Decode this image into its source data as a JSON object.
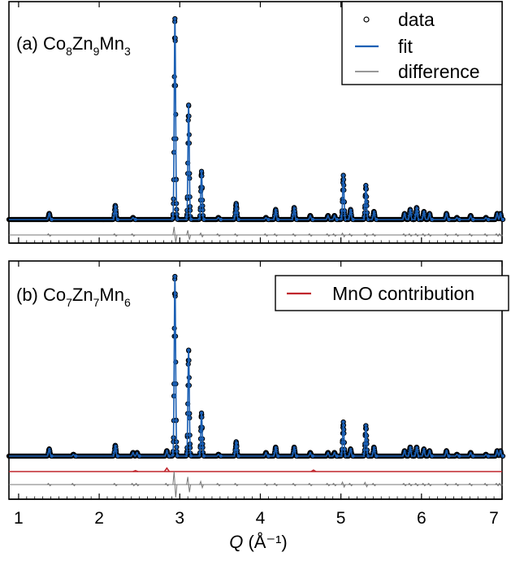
{
  "chart_data": [
    {
      "type": "scatter",
      "panel_label": "(a) Co8Zn9Mn3",
      "panel_label_parts": {
        "prefix": "(a) ",
        "parts": [
          [
            "Co",
            "8"
          ],
          [
            "Zn",
            "9"
          ],
          [
            "Mn",
            "3"
          ]
        ]
      },
      "xlim": [
        0.88,
        7.0
      ],
      "legend": {
        "placement": "top-right",
        "entries": [
          {
            "label": "data",
            "kind": "marker",
            "color": "#000000"
          },
          {
            "label": "fit",
            "kind": "line",
            "color": "#1a5fb4"
          },
          {
            "label": "difference",
            "kind": "line",
            "color": "#777777"
          }
        ]
      },
      "peaks": [
        {
          "q": 1.38,
          "h": 0.03
        },
        {
          "q": 2.2,
          "h": 0.07
        },
        {
          "q": 2.42,
          "h": 0.01
        },
        {
          "q": 2.94,
          "h": 1.0
        },
        {
          "q": 3.11,
          "h": 0.57
        },
        {
          "q": 3.27,
          "h": 0.24
        },
        {
          "q": 3.48,
          "h": 0.01
        },
        {
          "q": 3.7,
          "h": 0.08
        },
        {
          "q": 4.07,
          "h": 0.01
        },
        {
          "q": 4.19,
          "h": 0.05
        },
        {
          "q": 4.42,
          "h": 0.06
        },
        {
          "q": 4.62,
          "h": 0.02
        },
        {
          "q": 4.84,
          "h": 0.02
        },
        {
          "q": 4.92,
          "h": 0.02
        },
        {
          "q": 5.03,
          "h": 0.22
        },
        {
          "q": 5.12,
          "h": 0.05
        },
        {
          "q": 5.31,
          "h": 0.17
        },
        {
          "q": 5.41,
          "h": 0.04
        },
        {
          "q": 5.79,
          "h": 0.03
        },
        {
          "q": 5.86,
          "h": 0.05
        },
        {
          "q": 5.94,
          "h": 0.06
        },
        {
          "q": 6.03,
          "h": 0.04
        },
        {
          "q": 6.1,
          "h": 0.03
        },
        {
          "q": 6.31,
          "h": 0.03
        },
        {
          "q": 6.44,
          "h": 0.01
        },
        {
          "q": 6.61,
          "h": 0.02
        },
        {
          "q": 6.8,
          "h": 0.01
        },
        {
          "q": 6.94,
          "h": 0.03
        },
        {
          "q": 6.98,
          "h": 0.03
        }
      ]
    },
    {
      "type": "scatter",
      "panel_label": "(b) Co7Zn7Mn6",
      "panel_label_parts": {
        "prefix": "(b) ",
        "parts": [
          [
            "Co",
            "7"
          ],
          [
            "Zn",
            "7"
          ],
          [
            "Mn",
            "6"
          ]
        ]
      },
      "xlim": [
        0.88,
        7.0
      ],
      "legend": {
        "placement": "top-right",
        "entries": [
          {
            "label": "MnO contribution",
            "kind": "line",
            "color": "#c0262d"
          }
        ]
      },
      "mno_peaks": [
        {
          "q": 2.45,
          "h": 0.2
        },
        {
          "q": 2.84,
          "h": 0.7
        },
        {
          "q": 4.66,
          "h": 0.3
        }
      ],
      "peaks": [
        {
          "q": 1.38,
          "h": 0.04
        },
        {
          "q": 1.68,
          "h": 0.01
        },
        {
          "q": 2.2,
          "h": 0.06
        },
        {
          "q": 2.42,
          "h": 0.02
        },
        {
          "q": 2.47,
          "h": 0.02
        },
        {
          "q": 2.84,
          "h": 0.03
        },
        {
          "q": 2.94,
          "h": 1.0
        },
        {
          "q": 3.11,
          "h": 0.59
        },
        {
          "q": 3.27,
          "h": 0.24
        },
        {
          "q": 3.48,
          "h": 0.01
        },
        {
          "q": 3.7,
          "h": 0.08
        },
        {
          "q": 4.07,
          "h": 0.02
        },
        {
          "q": 4.19,
          "h": 0.05
        },
        {
          "q": 4.42,
          "h": 0.05
        },
        {
          "q": 4.62,
          "h": 0.02
        },
        {
          "q": 4.84,
          "h": 0.02
        },
        {
          "q": 4.92,
          "h": 0.02
        },
        {
          "q": 5.03,
          "h": 0.19
        },
        {
          "q": 5.12,
          "h": 0.04
        },
        {
          "q": 5.31,
          "h": 0.17
        },
        {
          "q": 5.41,
          "h": 0.05
        },
        {
          "q": 5.79,
          "h": 0.03
        },
        {
          "q": 5.86,
          "h": 0.05
        },
        {
          "q": 5.94,
          "h": 0.05
        },
        {
          "q": 6.03,
          "h": 0.04
        },
        {
          "q": 6.1,
          "h": 0.03
        },
        {
          "q": 6.31,
          "h": 0.03
        },
        {
          "q": 6.44,
          "h": 0.01
        },
        {
          "q": 6.61,
          "h": 0.02
        },
        {
          "q": 6.8,
          "h": 0.01
        },
        {
          "q": 6.94,
          "h": 0.03
        },
        {
          "q": 6.98,
          "h": 0.03
        }
      ]
    }
  ],
  "x_axis": {
    "label_symbol": "Q",
    "label_units": "(Å⁻¹)",
    "ticks": [
      1,
      2,
      3,
      4,
      5,
      6,
      7
    ],
    "tick_labels": [
      "1",
      "2",
      "3",
      "4",
      "5",
      "6",
      "7"
    ]
  },
  "colors": {
    "fit": "#1a5fb4",
    "data_marker": "#000000",
    "difference": "#777777",
    "mno": "#c0262d"
  }
}
